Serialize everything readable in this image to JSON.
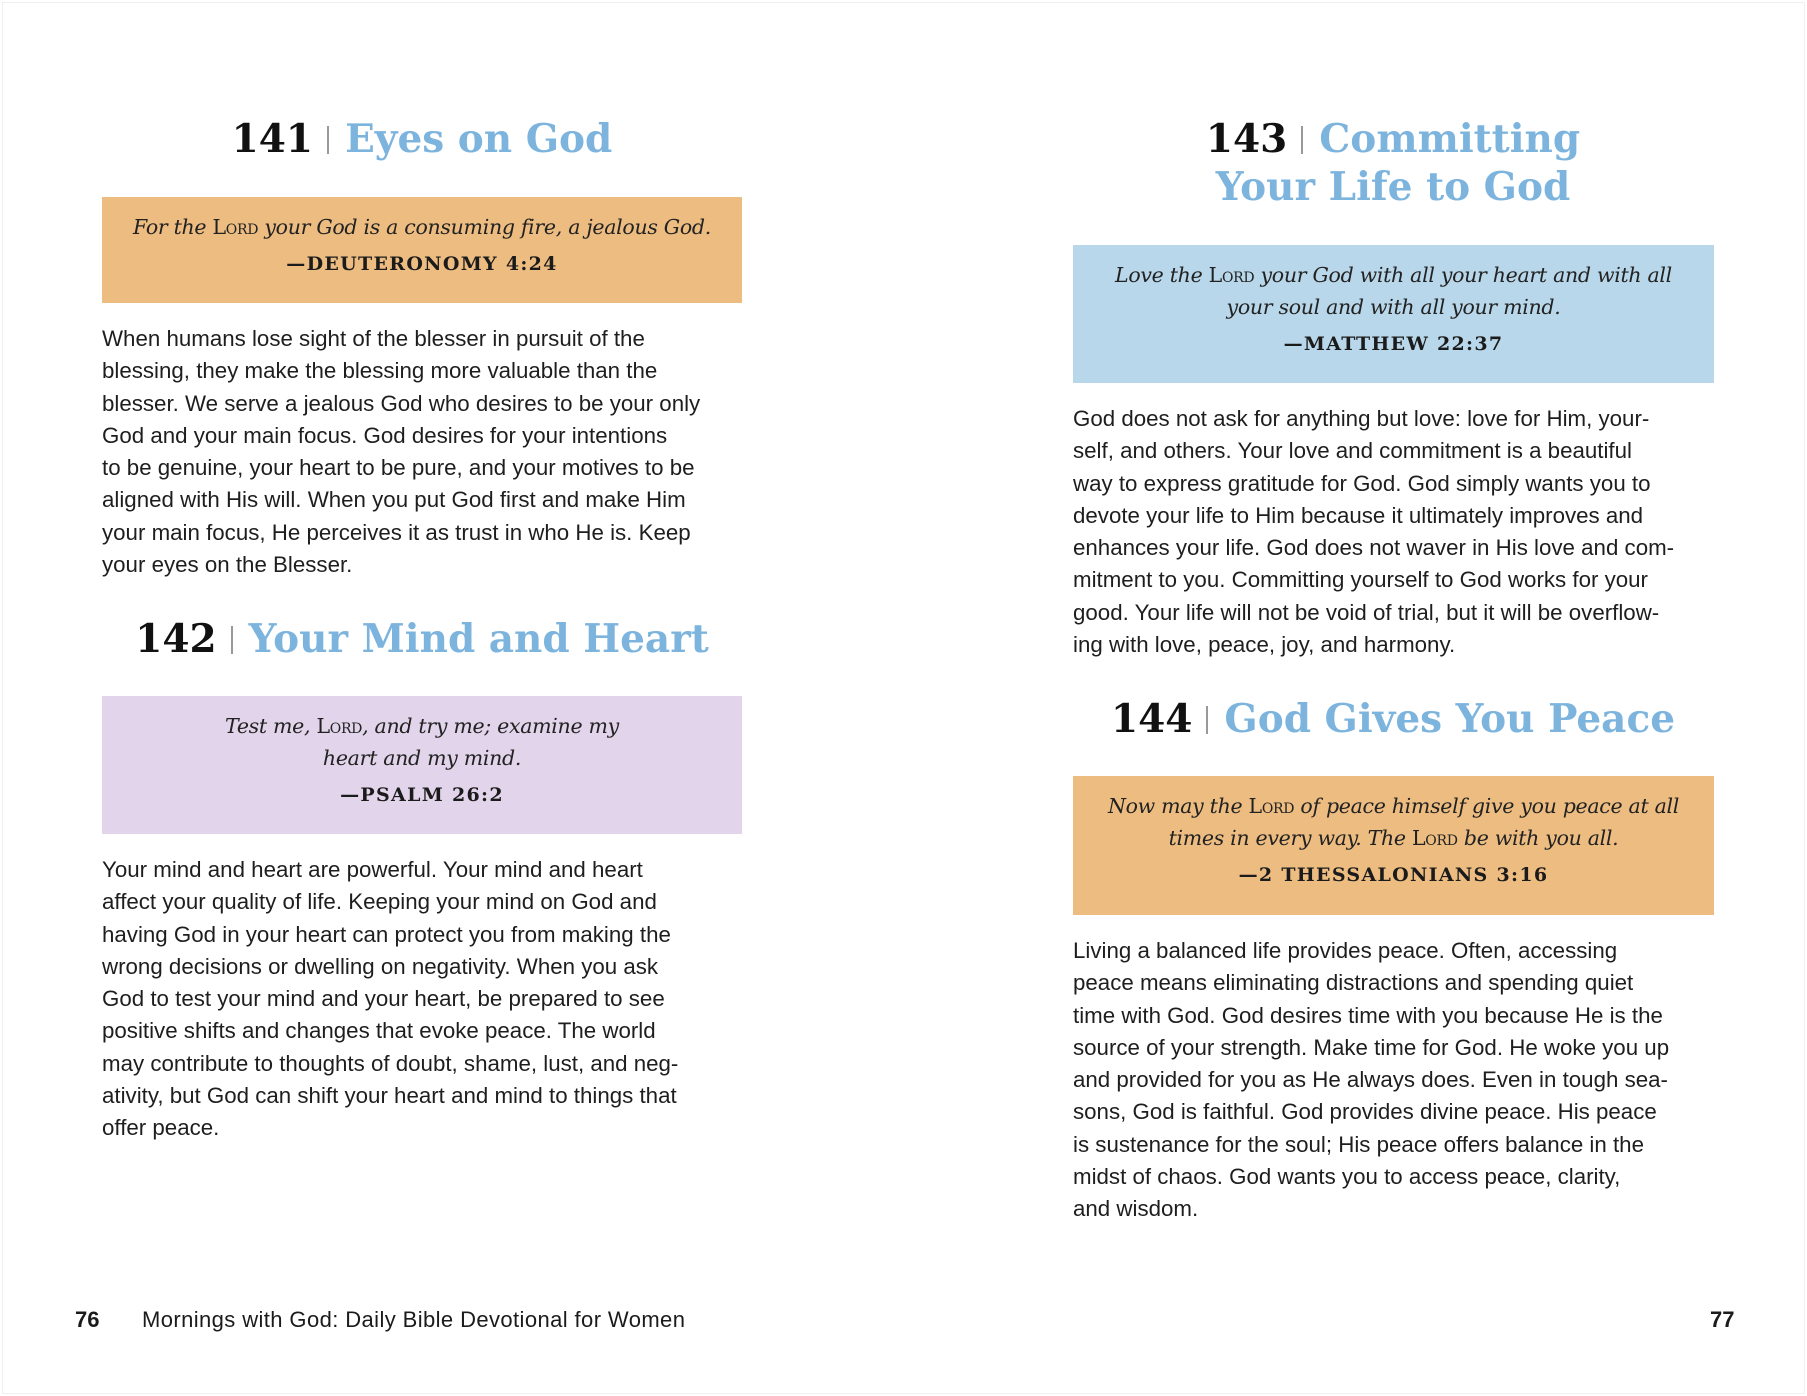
{
  "left_page": {
    "entries": [
      {
        "number": "141",
        "title": "Eyes on God",
        "quote_color": "#edbc81",
        "quote": [
          "For the ",
          "Lord",
          " your God is a consuming fire, a jealous God."
        ],
        "reference": "—DEUTERONOMY 4:24",
        "body_lines": [
          "When humans lose sight of the blesser in pursuit of the",
          "blessing, they make the blessing more valuable than the",
          "blesser. We serve a jealous God who desires to be your only",
          "God and your main focus. God desires for your intentions",
          "to be genuine, your heart to be pure, and your motives to be",
          "aligned with His will. When you put God first and make Him",
          "your main focus, He perceives it as trust in who He is. Keep",
          "your eyes on the Blesser."
        ]
      },
      {
        "number": "142",
        "title": "Your Mind and Heart",
        "quote_color": "#e2d4ea",
        "quote_line1": [
          "Test me, ",
          "Lord",
          ", and try me; examine my"
        ],
        "quote_line2": "heart and my mind.",
        "reference": "—PSALM 26:2",
        "body_lines": [
          "Your mind and heart are powerful. Your mind and heart",
          "affect your quality of life. Keeping your mind on God and",
          "having God in your heart can protect you from making the",
          "wrong decisions or dwelling on negativity. When you ask",
          "God to test your mind and your heart, be prepared to see",
          "positive shifts and changes that evoke peace. The world",
          "may contribute to thoughts of doubt, shame, lust, and neg-",
          "ativity, but God can shift your heart and mind to things that",
          "offer peace."
        ]
      }
    ],
    "page_number": "76",
    "running_title": "Mornings with God: Daily Bible Devotional for Women"
  },
  "right_page": {
    "entries": [
      {
        "number": "143",
        "title_line1": "Committing",
        "title_line2": "Your Life to God",
        "quote_color": "#b8d7ea",
        "quote_line1": [
          "Love the ",
          "Lord",
          " your God with all your heart and with all"
        ],
        "quote_line2": "your soul and with all your mind.",
        "reference": "—MATTHEW 22:37",
        "body_lines": [
          "God does not ask for anything but love: love for Him, your-",
          "self, and others. Your love and commitment is a beautiful",
          "way to express gratitude for God. God simply wants you to",
          "devote your life to Him because it ultimately improves and",
          "enhances your life. God does not waver in His love and com-",
          "mitment to you. Committing yourself to God works for your",
          "good. Your life will not be void of trial, but it will be overflow-",
          "ing with love, peace, joy, and harmony."
        ]
      },
      {
        "number": "144",
        "title": "God Gives You Peace",
        "quote_color": "#edbc81",
        "quote_line1": [
          "Now may the ",
          "Lord",
          " of peace himself give you peace at all"
        ],
        "quote_line2": [
          "times in every way. The ",
          "Lord",
          " be with you all."
        ],
        "reference": "—2 THESSALONIANS 3:16",
        "body_lines": [
          "Living a balanced life provides peace. Often, accessing",
          "peace means eliminating distractions and spending quiet",
          "time with God. God desires time with you because He is the",
          "source of your strength. Make time for God. He woke you up",
          "and provided for you as He always does. Even in tough sea-",
          "sons, God is faithful. God provides divine peace. His peace",
          "is sustenance for the soul; His peace offers balance in the",
          "midst of chaos. God wants you to access peace, clarity,",
          "and wisdom."
        ]
      }
    ],
    "page_number": "77"
  }
}
